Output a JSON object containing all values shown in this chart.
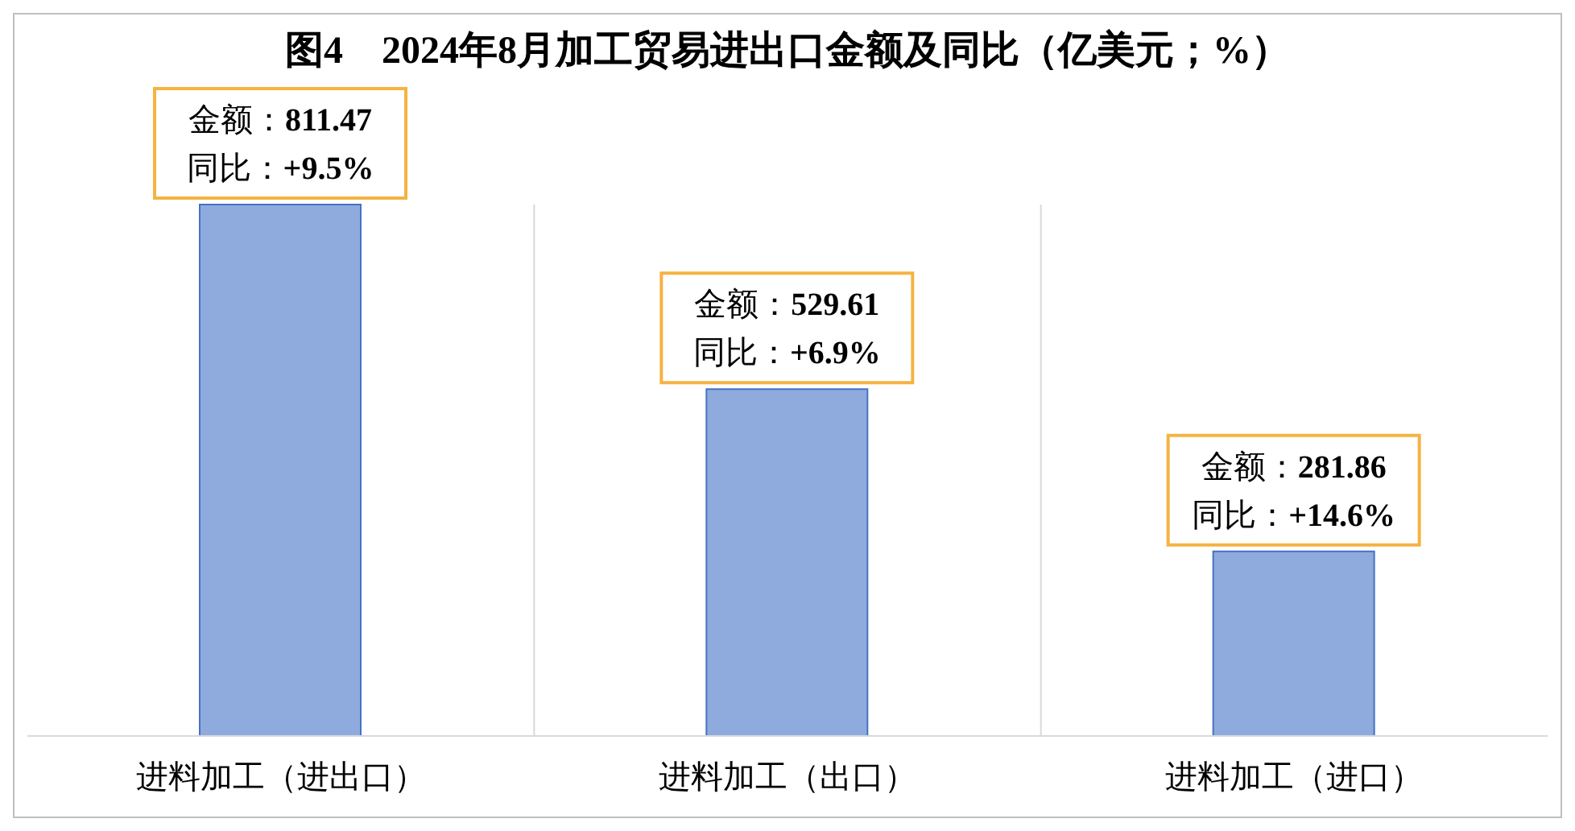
{
  "chart_data": {
    "type": "bar",
    "title": "图4　2024年8月加工贸易进出口金额及同比（亿美元；%）",
    "categories": [
      "进料加工（进出口）",
      "进料加工（出口）",
      "进料加工（进口）"
    ],
    "values": [
      811.47,
      529.61,
      281.86
    ],
    "color": "#8faadc",
    "value_labels": [
      "金额：811.47\n同比：+9.5%",
      "金额：529.61\n同比：+6.9%",
      "金额：281.86\n同比：+14.6%"
    ],
    "grid": "x"
  }
}
